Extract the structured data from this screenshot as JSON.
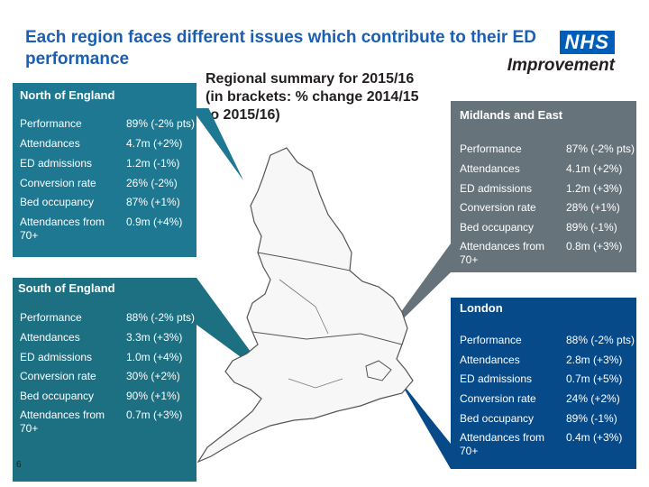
{
  "title": "Each region faces different issues which contribute to their ED performance",
  "logo": {
    "nhs": "NHS",
    "sub": "Improvement"
  },
  "summary": "Regional summary for 2015/16 (in brackets: % change 2014/15 to 2015/16)",
  "page_number": "6",
  "colors": {
    "north": "#1e7891",
    "south": "#1d6f82",
    "midlands": "#67737b",
    "london": "#074a8a"
  },
  "regions": {
    "north": {
      "name": "North of England",
      "rows": [
        {
          "k": "Performance",
          "v": "89% (-2% pts)"
        },
        {
          "k": "Attendances",
          "v": "4.7m (+2%)"
        },
        {
          "k": "ED admissions",
          "v": "1.2m (-1%)"
        },
        {
          "k": "Conversion rate",
          "v": "26% (-2%)"
        },
        {
          "k": "Bed occupancy",
          "v": "87% (+1%)"
        },
        {
          "k": "Attendances from 70+",
          "v": "0.9m (+4%)"
        }
      ]
    },
    "south": {
      "name": "South of England",
      "rows": [
        {
          "k": "Performance",
          "v": "88% (-2% pts)"
        },
        {
          "k": "Attendances",
          "v": "3.3m (+3%)"
        },
        {
          "k": "ED admissions",
          "v": "1.0m (+4%)"
        },
        {
          "k": "Conversion rate",
          "v": "30% (+2%)"
        },
        {
          "k": "Bed occupancy",
          "v": "90% (+1%)"
        },
        {
          "k": "Attendances from 70+",
          "v": "0.7m (+3%)"
        }
      ]
    },
    "midlands": {
      "name": "Midlands and East",
      "rows": [
        {
          "k": "Performance",
          "v": "87% (-2% pts)"
        },
        {
          "k": "Attendances",
          "v": "4.1m (+2%)"
        },
        {
          "k": "ED admissions",
          "v": "1.2m (+3%)"
        },
        {
          "k": "Conversion rate",
          "v": "28% (+1%)"
        },
        {
          "k": "Bed occupancy",
          "v": "89% (-1%)"
        },
        {
          "k": "Attendances from 70+",
          "v": "0.8m (+3%)"
        }
      ]
    },
    "london": {
      "name": "London",
      "rows": [
        {
          "k": "Performance",
          "v": "88% (-2% pts)"
        },
        {
          "k": "Attendances",
          "v": "2.8m (+3%)"
        },
        {
          "k": "ED admissions",
          "v": "0.7m (+5%)"
        },
        {
          "k": "Conversion rate",
          "v": "24% (+2%)"
        },
        {
          "k": "Bed occupancy",
          "v": "89% (-1%)"
        },
        {
          "k": "Attendances from 70+",
          "v": "0.4m (+3%)"
        }
      ]
    }
  }
}
